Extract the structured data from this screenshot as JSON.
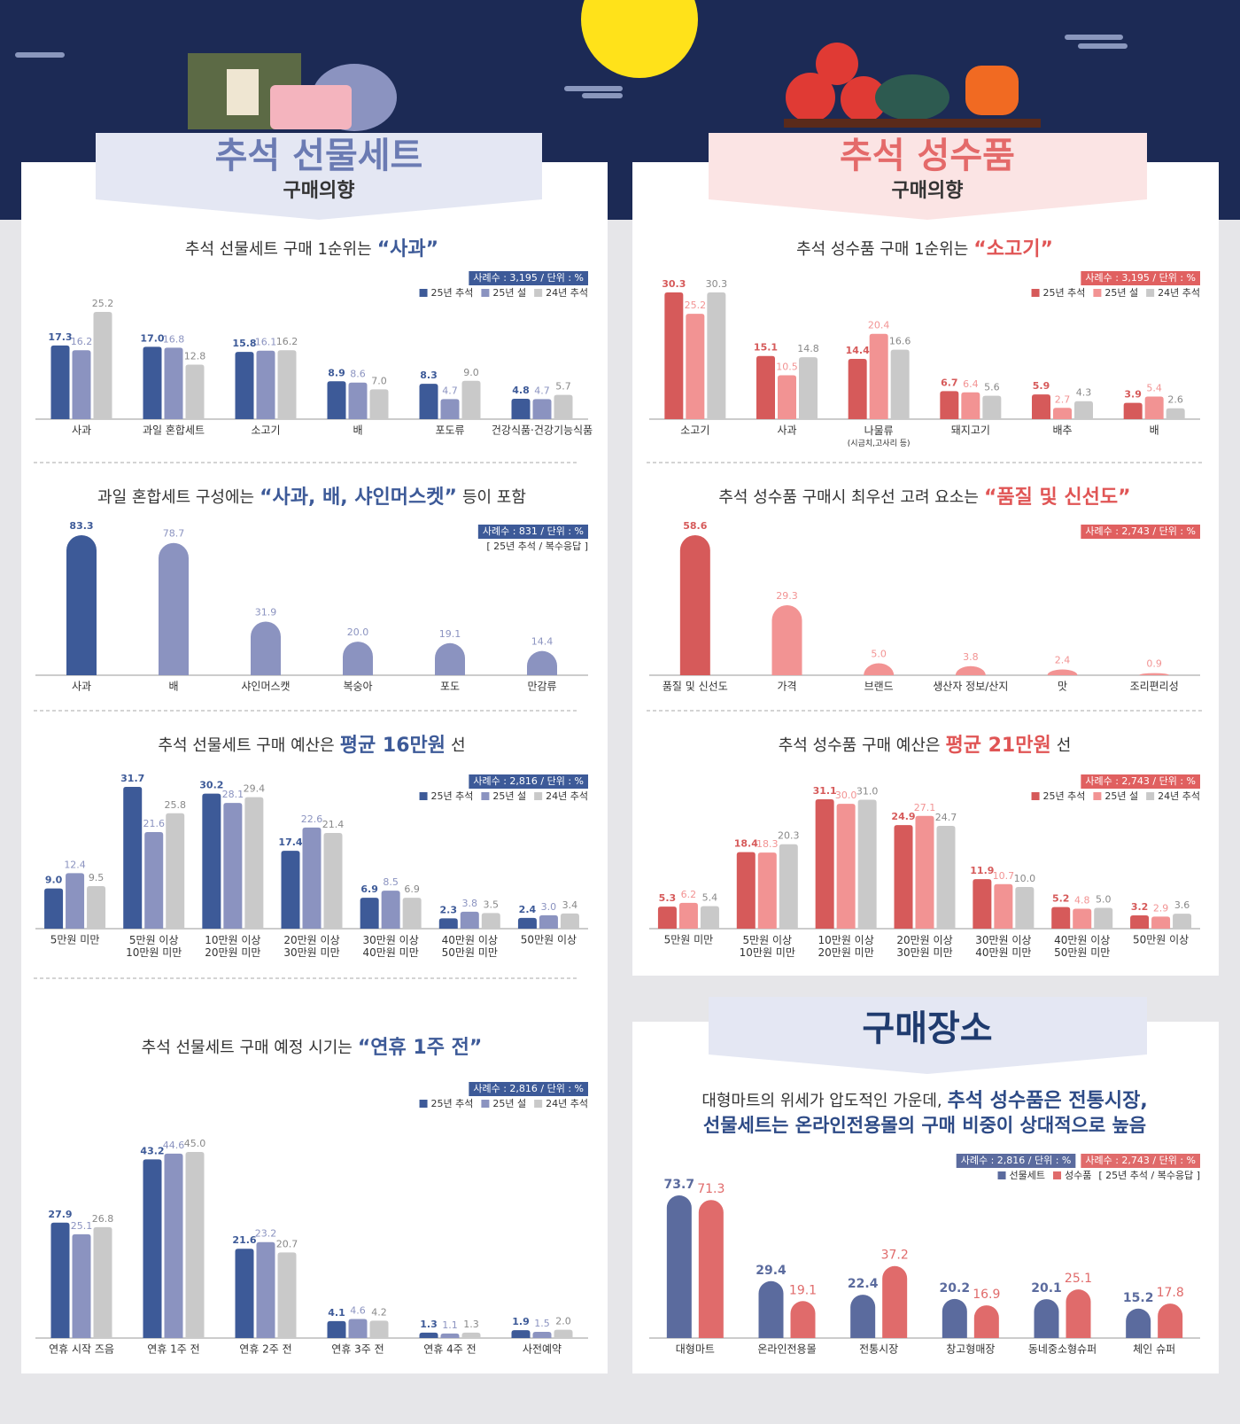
{
  "headers": {
    "left_title": "추석 선물세트",
    "left_sub": "구매의향",
    "right_title": "추석 성수품",
    "right_sub": "구매의향",
    "place_title": "구매장소"
  },
  "chart_data": [
    {
      "type": "bar",
      "title": "추석 선물세트 구매 1순위는",
      "highlight": "“사과”",
      "notes": [
        {
          "text": "사례수 : 3,195 / 단위 : %",
          "color": "#3d5a98"
        }
      ],
      "categories": [
        "사과",
        "과일 혼합세트",
        "소고기",
        "배",
        "포도류",
        "건강식품·건강기능식품"
      ],
      "series": [
        {
          "name": "25년 추석",
          "color": "#3d5a98",
          "values": [
            17.3,
            17.0,
            15.8,
            8.9,
            8.3,
            4.8
          ],
          "value_labels": [
            "17.3",
            "17.0",
            "15.8",
            "8.9",
            "8.3",
            "4.8"
          ]
        },
        {
          "name": "25년 설",
          "color": "#8b93c0",
          "values": [
            16.2,
            16.8,
            16.1,
            8.6,
            4.7,
            4.7
          ]
        },
        {
          "name": "24년 추석",
          "color": "#c9c9c9",
          "values": [
            25.2,
            12.8,
            16.2,
            7.0,
            9.0,
            5.7
          ],
          "value_labels": [
            "25.2",
            "12.8",
            "16.2",
            "7.0",
            "9.0",
            "5.7"
          ]
        }
      ]
    },
    {
      "type": "bar",
      "title": "과일 혼합세트 구성에는",
      "highlight": "“사과, 배, 샤인머스켓”",
      "title_end": "등이 포함",
      "notes": [
        {
          "text": "사례수 : 831 / 단위 : %",
          "color": "#3d5a98"
        }
      ],
      "subnote": "[ 25년 추석 / 복수응답 ]",
      "categories": [
        "사과",
        "배",
        "샤인머스캣",
        "복숭아",
        "포도",
        "만감류"
      ],
      "values": [
        83.3,
        78.7,
        31.9,
        20.0,
        19.1,
        14.4
      ],
      "value_labels": [
        "83.3",
        "78.7",
        "31.9",
        "20.0",
        "19.1",
        "14.4"
      ],
      "colors": [
        "#3d5a98",
        "#8b93c0",
        "#8b93c0",
        "#8b93c0",
        "#8b93c0",
        "#8b93c0"
      ]
    },
    {
      "type": "bar",
      "title": "추석 선물세트 구매 예산은",
      "highlight": "평균 16만원",
      "title_end": "선",
      "notes": [
        {
          "text": "사례수 : 2,816 / 단위 : %",
          "color": "#3d5a98"
        }
      ],
      "categories": [
        "5만원 미만",
        "5만원 이상\n10만원 미만",
        "10만원 이상\n20만원 미만",
        "20만원 이상\n30만원 미만",
        "30만원 이상\n40만원 미만",
        "40만원 이상\n50만원 미만",
        "50만원 이상"
      ],
      "series": [
        {
          "name": "25년 추석",
          "color": "#3d5a98",
          "values": [
            9.0,
            31.7,
            30.2,
            17.4,
            6.9,
            2.3,
            2.4
          ],
          "value_labels": [
            "9.0",
            "31.7",
            "30.2",
            "17.4",
            "6.9",
            "2.3",
            "2.4"
          ]
        },
        {
          "name": "25년 설",
          "color": "#8b93c0",
          "values": [
            12.4,
            21.6,
            28.1,
            22.6,
            8.5,
            3.8,
            3.0
          ],
          "value_labels": [
            "12.4",
            "21.6",
            "28.1",
            "22.6",
            "8.5",
            "3.8",
            "3.0"
          ]
        },
        {
          "name": "24년 추석",
          "color": "#c9c9c9",
          "values": [
            9.5,
            25.8,
            29.4,
            21.4,
            6.9,
            3.5,
            3.4
          ]
        }
      ]
    },
    {
      "type": "bar",
      "title": "추석 선물세트 구매 예정 시기는",
      "highlight": "“연휴 1주 전”",
      "notes": [
        {
          "text": "사례수 : 2,816 / 단위 : %",
          "color": "#3d5a98"
        }
      ],
      "categories": [
        "연휴 시작 즈음",
        "연휴 1주 전",
        "연휴 2주 전",
        "연휴 3주 전",
        "연휴 4주 전",
        "사전예약"
      ],
      "series": [
        {
          "name": "25년 추석",
          "color": "#3d5a98",
          "values": [
            27.9,
            43.2,
            21.6,
            4.1,
            1.3,
            1.9
          ]
        },
        {
          "name": "25년 설",
          "color": "#8b93c0",
          "values": [
            25.1,
            44.6,
            23.2,
            4.6,
            1.1,
            1.5
          ]
        },
        {
          "name": "24년 추석",
          "color": "#c9c9c9",
          "values": [
            26.8,
            45.0,
            20.7,
            4.2,
            1.3,
            2.0
          ],
          "value_labels": [
            "26.8",
            "45.0",
            "20.7",
            "4.2",
            "1.3",
            "2.0"
          ]
        }
      ]
    },
    {
      "type": "bar",
      "title": "추석 성수품 구매 1순위는",
      "highlight": "“소고기”",
      "notes": [
        {
          "text": "사례수 : 3,195 / 단위 : %",
          "color": "#e06060"
        }
      ],
      "categories": [
        "소고기",
        "사과",
        "나물류\n(시금치,고사리 등)",
        "돼지고기",
        "배추",
        "배"
      ],
      "series": [
        {
          "name": "25년 추석",
          "color": "#d65a5a",
          "values": [
            30.3,
            15.1,
            14.4,
            6.7,
            5.9,
            3.9
          ]
        },
        {
          "name": "25년 설",
          "color": "#f29393",
          "values": [
            25.2,
            10.5,
            20.4,
            6.4,
            2.7,
            5.4
          ]
        },
        {
          "name": "24년 추석",
          "color": "#c9c9c9",
          "values": [
            30.3,
            14.8,
            16.6,
            5.6,
            4.3,
            2.6
          ]
        }
      ]
    },
    {
      "type": "bar",
      "title": "추석 성수품 구매시 최우선 고려 요소는",
      "highlight": "“품질 및 신선도”",
      "notes": [
        {
          "text": "사례수 : 2,743 / 단위 : %",
          "color": "#e06060"
        }
      ],
      "categories": [
        "품질 및 신선도",
        "가격",
        "브랜드",
        "생산자 정보/산지",
        "맛",
        "조리편리성"
      ],
      "values": [
        58.6,
        29.3,
        5.0,
        3.8,
        2.4,
        0.9
      ],
      "value_labels": [
        "58.6",
        "29.3",
        "5.0",
        "3.8",
        "2.4",
        "0.9"
      ],
      "colors": [
        "#d65a5a",
        "#f29393",
        "#f29393",
        "#f29393",
        "#f29393",
        "#f29393"
      ]
    },
    {
      "type": "bar",
      "title": "추석 성수품 구매 예산은",
      "highlight": "평균 21만원",
      "title_end": "선",
      "notes": [
        {
          "text": "사례수 : 2,743 / 단위 : %",
          "color": "#e06060"
        }
      ],
      "categories": [
        "5만원 미만",
        "5만원 이상\n10만원 미만",
        "10만원 이상\n20만원 미만",
        "20만원 이상\n30만원 미만",
        "30만원 이상\n40만원 미만",
        "40만원 이상\n50만원 미만",
        "50만원 이상"
      ],
      "series": [
        {
          "name": "25년 추석",
          "color": "#d65a5a",
          "values": [
            5.3,
            18.4,
            31.1,
            24.9,
            11.9,
            5.2,
            3.2
          ]
        },
        {
          "name": "25년 설",
          "color": "#f29393",
          "values": [
            6.2,
            18.3,
            30.0,
            27.1,
            10.7,
            4.8,
            2.9
          ],
          "value_labels": [
            "6.2",
            "18.3",
            "30.0",
            "27.1",
            "10.7",
            "4.8",
            "2.9"
          ]
        },
        {
          "name": "24년 추석",
          "color": "#c9c9c9",
          "values": [
            5.4,
            20.3,
            31.0,
            24.7,
            10.0,
            5.0,
            3.6
          ],
          "value_labels": [
            "5.4",
            "20.3",
            "31.0",
            "24.7",
            "10.0",
            "5.0",
            "3.6"
          ]
        }
      ]
    },
    {
      "type": "bar",
      "title": "대형마트의 위세가 압도적인 가운데,",
      "highlight": "추석 성수품은 전통시장,",
      "title_line2": "선물세트는 온라인전용몰의 구매 비중이 상대적으로 높음",
      "notes": [
        {
          "text": "사례수 : 2,816 / 단위 : %",
          "color": "#5b6b9e"
        },
        {
          "text": "사례수 : 2,743 / 단위 : %",
          "color": "#e06b6b"
        }
      ],
      "subnote": "[ 25년 추석 / 복수응답 ]",
      "categories": [
        "대형마트",
        "온라인전용몰",
        "전통시장",
        "창고형매장",
        "동네중소형슈퍼",
        "체인 슈퍼"
      ],
      "series": [
        {
          "name": "선물세트",
          "color": "#5b6b9e",
          "values": [
            73.7,
            29.4,
            22.4,
            20.2,
            20.1,
            15.2
          ]
        },
        {
          "name": "성수품",
          "color": "#e06b6b",
          "values": [
            71.3,
            19.1,
            37.2,
            16.9,
            25.1,
            17.8
          ]
        }
      ]
    }
  ]
}
